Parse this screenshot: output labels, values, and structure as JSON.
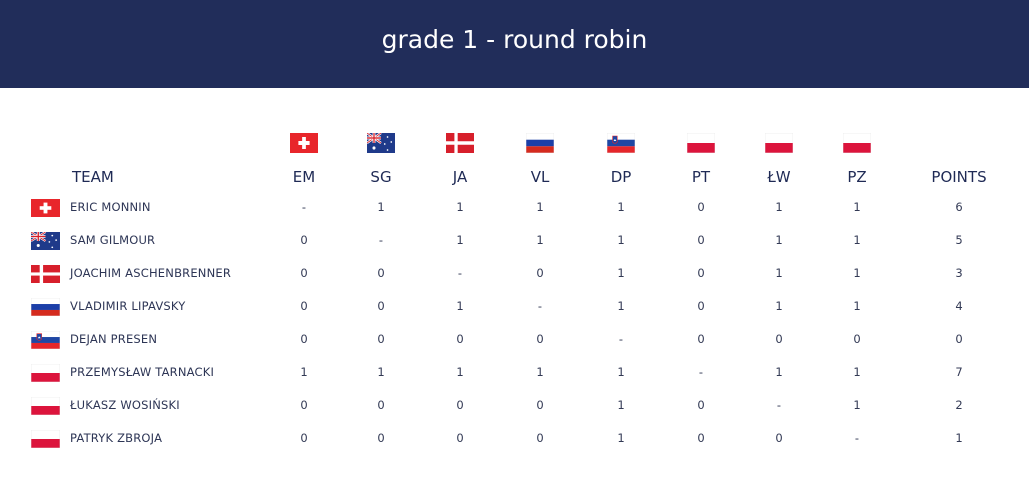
{
  "header": {
    "title": "grade 1 - round robin"
  },
  "table": {
    "team_header": "TEAM",
    "points_header": "POINTS",
    "columns": [
      {
        "code": "EM",
        "flag": "switzerland"
      },
      {
        "code": "SG",
        "flag": "australia"
      },
      {
        "code": "JA",
        "flag": "denmark"
      },
      {
        "code": "VL",
        "flag": "russia"
      },
      {
        "code": "DP",
        "flag": "slovenia"
      },
      {
        "code": "PT",
        "flag": "poland"
      },
      {
        "code": "ŁW",
        "flag": "poland"
      },
      {
        "code": "PZ",
        "flag": "poland"
      }
    ],
    "rows": [
      {
        "name": "ERIC MONNIN",
        "flag": "switzerland",
        "results": [
          "-",
          "1",
          "1",
          "1",
          "1",
          "0",
          "1",
          "1"
        ],
        "points": "6"
      },
      {
        "name": "SAM GILMOUR",
        "flag": "australia",
        "results": [
          "0",
          "-",
          "1",
          "1",
          "1",
          "0",
          "1",
          "1"
        ],
        "points": "5"
      },
      {
        "name": "JOACHIM ASCHENBRENNER",
        "flag": "denmark",
        "results": [
          "0",
          "0",
          "-",
          "0",
          "1",
          "0",
          "1",
          "1"
        ],
        "points": "3"
      },
      {
        "name": "VLADIMIR LIPAVSKY",
        "flag": "russia",
        "results": [
          "0",
          "0",
          "1",
          "-",
          "1",
          "0",
          "1",
          "1"
        ],
        "points": "4"
      },
      {
        "name": "DEJAN PRESEN",
        "flag": "slovenia",
        "results": [
          "0",
          "0",
          "0",
          "0",
          "-",
          "0",
          "0",
          "0"
        ],
        "points": "0"
      },
      {
        "name": "PRZEMYSŁAW TARNACKI",
        "flag": "poland",
        "results": [
          "1",
          "1",
          "1",
          "1",
          "1",
          "-",
          "1",
          "1"
        ],
        "points": "7"
      },
      {
        "name": "ŁUKASZ WOSIŃSKI",
        "flag": "poland",
        "results": [
          "0",
          "0",
          "0",
          "0",
          "1",
          "0",
          "-",
          "1"
        ],
        "points": "2"
      },
      {
        "name": "PATRYK ZBROJA",
        "flag": "poland",
        "results": [
          "0",
          "0",
          "0",
          "0",
          "1",
          "0",
          "0",
          "-"
        ],
        "points": "1"
      }
    ]
  },
  "colors": {
    "header_bg": "#212d5a",
    "text": "#1f2a55"
  }
}
